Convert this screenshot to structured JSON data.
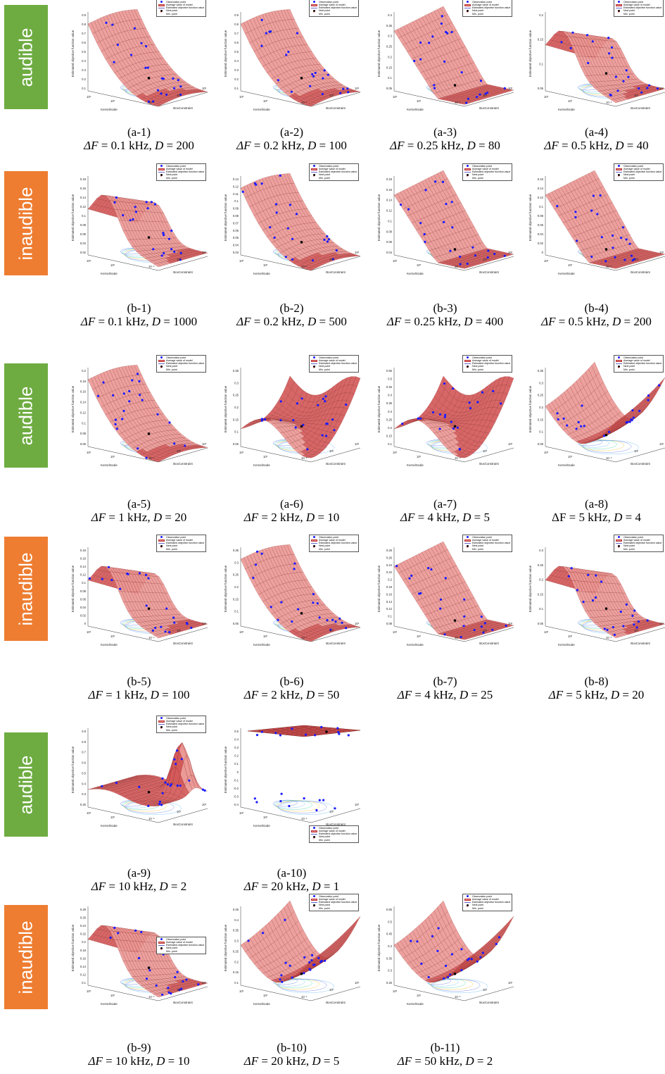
{
  "row_labels": [
    {
      "text": "audible",
      "color": "#6eac41"
    },
    {
      "text": "inaudible",
      "color": "#ee7d31"
    },
    {
      "text": "audible",
      "color": "#6eac41"
    },
    {
      "text": "inaudible",
      "color": "#ee7d31"
    },
    {
      "text": "audible",
      "color": "#6eac41"
    },
    {
      "text": "inaudible",
      "color": "#ee7d31"
    }
  ],
  "legend": {
    "observation": "Observation point",
    "model_mean": "Average value of model",
    "estimated": "Estimated objective function value",
    "next": "Next point",
    "min": "Min. point"
  },
  "axis_labels": {
    "x": "KernelScale",
    "y": "BoxConstraint",
    "z": "Estimated objective function value"
  },
  "tick_labels": {
    "kernel": [
      "10³",
      "10⁰"
    ],
    "box": [
      "10⁻³",
      "10⁰",
      "10³"
    ]
  },
  "colors": {
    "surface": "#d45a5a",
    "surface_light": "#ec9a96",
    "mesh": "#7a1b1b",
    "points": "#1a1aff",
    "contour": [
      "#3b5bdb",
      "#4dabf7",
      "#20c997",
      "#fab005"
    ]
  },
  "chart_data": [
    {
      "type": "surface3d",
      "id": "a-1",
      "label": "(a-1)",
      "df": "0.1",
      "d": "200",
      "zticks": [
        "0.9",
        "0.8",
        "0.7",
        "0.6",
        "0.5",
        "0.4",
        "0.3",
        "0.2",
        "0.1"
      ],
      "shape": "corner-high"
    },
    {
      "type": "surface3d",
      "id": "a-2",
      "label": "(a-2)",
      "df": "0.2",
      "d": "100",
      "zticks": [
        "0.9",
        "0.8",
        "0.7",
        "0.6",
        "0.5",
        "0.4",
        "0.3",
        "0.2",
        "0.1"
      ],
      "shape": "corner-high"
    },
    {
      "type": "surface3d",
      "id": "a-3",
      "label": "(a-3)",
      "df": "0.25",
      "d": "80",
      "zticks": [
        "0.4",
        "0.35",
        "0.3",
        "0.25",
        "0.2",
        "0.15",
        "0.1",
        "0.05"
      ],
      "shape": "sheet"
    },
    {
      "type": "surface3d",
      "id": "a-4",
      "label": "(a-4)",
      "df": "0.5",
      "d": "40",
      "zticks": [
        "0.2",
        "0.15",
        "0.1",
        "0.05"
      ],
      "shape": "fold"
    },
    {
      "type": "surface3d",
      "id": "b-1",
      "label": "(b-1)",
      "df": "0.1",
      "d": "1000",
      "zticks": [
        "0.18",
        "0.16",
        "0.14",
        "0.12",
        "0.1",
        "0.08",
        "0.06",
        "0.04",
        "0.02"
      ],
      "shape": "fold"
    },
    {
      "type": "surface3d",
      "id": "b-2",
      "label": "(b-2)",
      "df": "0.2",
      "d": "500",
      "zticks": [
        "0.13",
        "0.12",
        "0.11",
        "0.1",
        "0.09",
        "0.08",
        "0.07",
        "0.06",
        "0.05",
        "0.04",
        "0.03"
      ],
      "shape": "corner-high"
    },
    {
      "type": "surface3d",
      "id": "b-3",
      "label": "(b-3)",
      "df": "0.25",
      "d": "400",
      "zticks": [
        "0.18",
        "0.16",
        "0.14",
        "0.12",
        "0.1",
        "0.08",
        "0.06",
        "0.04"
      ],
      "shape": "sheet"
    },
    {
      "type": "surface3d",
      "id": "b-4",
      "label": "(b-4)",
      "df": "0.5",
      "d": "200",
      "zticks": [
        "0.16",
        "0.14",
        "0.12",
        "0.1",
        "0.08",
        "0.06",
        "0.04",
        "0.02",
        "0"
      ],
      "shape": "sheet"
    },
    {
      "type": "surface3d",
      "id": "a-5",
      "label": "(a-5)",
      "df": "1",
      "d": "20",
      "zticks": [
        "0.2",
        "0.18",
        "0.16",
        "0.14",
        "0.12",
        "0.1",
        "0.08",
        "0.06"
      ],
      "shape": "corner-high"
    },
    {
      "type": "surface3d",
      "id": "a-6",
      "label": "(a-6)",
      "df": "2",
      "d": "10",
      "zticks": [
        "0.35",
        "0.3",
        "0.25",
        "0.2",
        "0.15",
        "0.1",
        "0.05"
      ],
      "shape": "saddle"
    },
    {
      "type": "surface3d",
      "id": "a-7",
      "label": "(a-7)",
      "df": "4",
      "d": "5",
      "zticks": [
        "0.55",
        "0.5",
        "0.45",
        "0.4",
        "0.35",
        "0.3",
        "0.25",
        "0.2",
        "0.15",
        "0.1"
      ],
      "shape": "saddle"
    },
    {
      "type": "surface3d",
      "id": "a-8",
      "label": "(a-8)",
      "df": "5",
      "d": "4",
      "zticks": [
        "0.35",
        "0.3",
        "0.25",
        "0.2",
        "0.15",
        "0.1",
        "0.05"
      ],
      "shape": "valley"
    },
    {
      "type": "surface3d",
      "id": "b-5",
      "label": "(b-5)",
      "df": "1",
      "d": "100",
      "zticks": [
        "0.18",
        "0.16",
        "0.14",
        "0.12",
        "0.1",
        "0.08",
        "0.06",
        "0.04",
        "0.02",
        "0"
      ],
      "shape": "fold"
    },
    {
      "type": "surface3d",
      "id": "b-6",
      "label": "(b-6)",
      "df": "2",
      "d": "50",
      "zticks": [
        "0.35",
        "0.3",
        "0.25",
        "0.2",
        "0.15",
        "0.1",
        "0.05"
      ],
      "shape": "corner-high"
    },
    {
      "type": "surface3d",
      "id": "b-7",
      "label": "(b-7)",
      "df": "4",
      "d": "25",
      "zticks": [
        "0.28",
        "0.26",
        "0.24",
        "0.22",
        "0.2",
        "0.18",
        "0.16",
        "0.14",
        "0.12",
        "0.1",
        "0.08"
      ],
      "shape": "sheet"
    },
    {
      "type": "surface3d",
      "id": "b-8",
      "label": "(b-8)",
      "df": "5",
      "d": "20",
      "zticks": [
        "0.3",
        "0.25",
        "0.2",
        "0.15",
        "0.1",
        "0.05"
      ],
      "shape": "fold"
    },
    {
      "type": "surface3d",
      "id": "a-9",
      "label": "(a-9)",
      "df": "10",
      "d": "2",
      "zticks": [
        "0.9",
        "0.8",
        "0.7",
        "0.6",
        "0.5",
        "0.4",
        "0.3",
        "0.25"
      ],
      "shape": "spike"
    },
    {
      "type": "surface3d",
      "id": "a-10",
      "label": "(a-10)",
      "df": "20",
      "d": "1",
      "zticks": [
        "0.5",
        "0.4",
        "0.3",
        "0.2",
        "0.1",
        "0",
        "-0.1",
        "-0.2",
        "-0.3",
        "-0.4"
      ],
      "shape": "flat"
    },
    {
      "type": "surface3d",
      "id": "b-9",
      "label": "(b-9)",
      "df": "10",
      "d": "10",
      "zticks": [
        "0.28",
        "0.26",
        "0.24",
        "0.22",
        "0.2",
        "0.18",
        "0.16",
        "0.14",
        "0.12",
        "0.1"
      ],
      "shape": "fold"
    },
    {
      "type": "surface3d",
      "id": "b-10",
      "label": "(b-10)",
      "df": "20",
      "d": "5",
      "zticks": [
        "0.45",
        "0.4",
        "0.35",
        "0.3",
        "0.25",
        "0.2",
        "0.15",
        "0.1"
      ],
      "shape": "valley"
    },
    {
      "type": "surface3d",
      "id": "b-11",
      "label": "(b-11)",
      "df": "50",
      "d": "2",
      "zticks": [
        "0.55",
        "0.5",
        "0.45",
        "0.4",
        "0.35",
        "0.3",
        "0.25"
      ],
      "shape": "valley"
    }
  ]
}
